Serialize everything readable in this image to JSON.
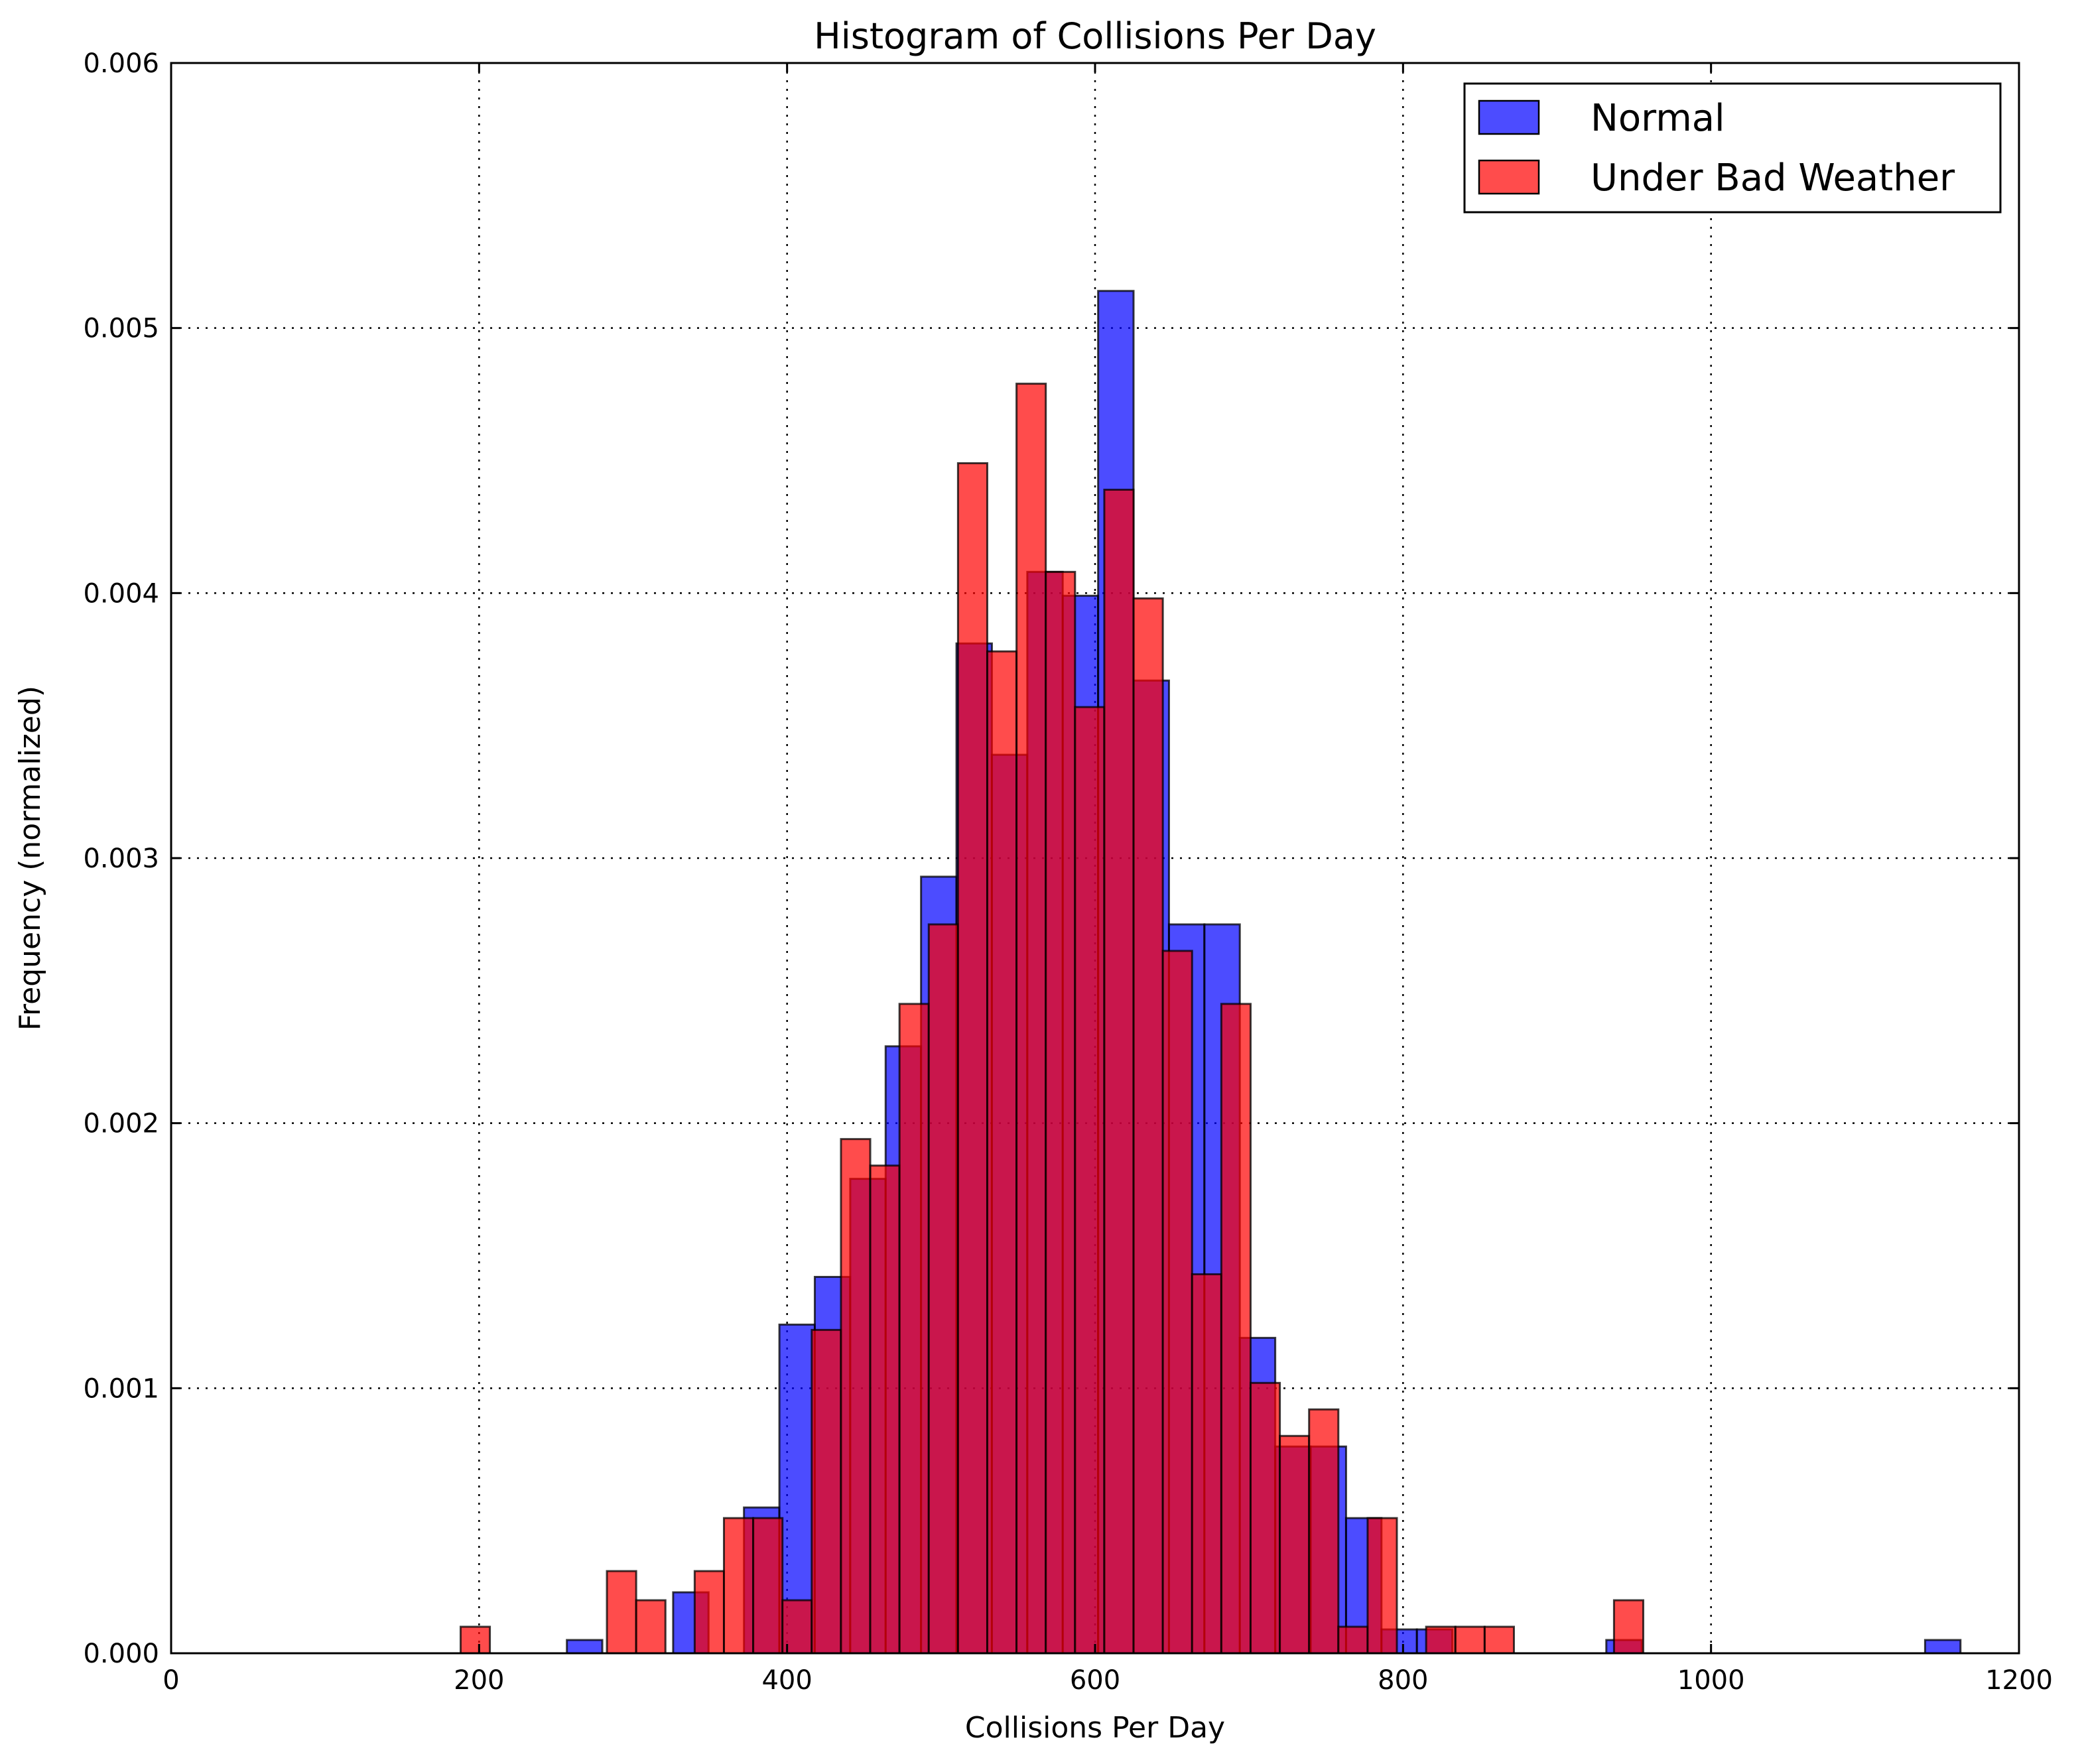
{
  "chart_data": {
    "type": "bar",
    "title": "Histogram of Collisions Per Day",
    "xlabel": "Collisions Per Day",
    "ylabel": "Frequency (normalized)",
    "xlim": [
      0,
      1200
    ],
    "ylim": [
      0,
      0.006
    ],
    "xticks": [
      "0",
      "200",
      "400",
      "600",
      "800",
      "1000",
      "1200"
    ],
    "yticks": [
      "0.000",
      "0.001",
      "0.002",
      "0.003",
      "0.004",
      "0.005",
      "0.006"
    ],
    "grid": true,
    "legend_position": "top-right",
    "series": [
      {
        "name": "Normal",
        "color": "#0000ff",
        "bins": [
          {
            "x0": 257,
            "x1": 280,
            "y": 5e-05
          },
          {
            "x0": 326,
            "x1": 349,
            "y": 0.00023
          },
          {
            "x0": 372,
            "x1": 395,
            "y": 0.00055
          },
          {
            "x0": 395,
            "x1": 418,
            "y": 0.00124
          },
          {
            "x0": 418,
            "x1": 441,
            "y": 0.00142
          },
          {
            "x0": 441,
            "x1": 464,
            "y": 0.00179
          },
          {
            "x0": 464,
            "x1": 487,
            "y": 0.00229
          },
          {
            "x0": 487,
            "x1": 510,
            "y": 0.00293
          },
          {
            "x0": 510,
            "x1": 533,
            "y": 0.00381
          },
          {
            "x0": 533,
            "x1": 556,
            "y": 0.00339
          },
          {
            "x0": 556,
            "x1": 579,
            "y": 0.00408
          },
          {
            "x0": 579,
            "x1": 602,
            "y": 0.00399
          },
          {
            "x0": 602,
            "x1": 625,
            "y": 0.00514
          },
          {
            "x0": 625,
            "x1": 648,
            "y": 0.00367
          },
          {
            "x0": 648,
            "x1": 671,
            "y": 0.00275
          },
          {
            "x0": 671,
            "x1": 694,
            "y": 0.00275
          },
          {
            "x0": 694,
            "x1": 717,
            "y": 0.00119
          },
          {
            "x0": 717,
            "x1": 740,
            "y": 0.00078
          },
          {
            "x0": 740,
            "x1": 763,
            "y": 0.00078
          },
          {
            "x0": 763,
            "x1": 786,
            "y": 0.00051
          },
          {
            "x0": 786,
            "x1": 809,
            "y": 9e-05
          },
          {
            "x0": 809,
            "x1": 832,
            "y": 9e-05
          },
          {
            "x0": 932,
            "x1": 955,
            "y": 5e-05
          },
          {
            "x0": 1139,
            "x1": 1162,
            "y": 5e-05
          }
        ]
      },
      {
        "name": "Under Bad Weather",
        "color": "#ff0000",
        "bins": [
          {
            "x0": 188,
            "x1": 207,
            "y": 0.0001
          },
          {
            "x0": 283,
            "x1": 302,
            "y": 0.00031
          },
          {
            "x0": 302,
            "x1": 321,
            "y": 0.0002
          },
          {
            "x0": 340,
            "x1": 359,
            "y": 0.00031
          },
          {
            "x0": 359,
            "x1": 378,
            "y": 0.00051
          },
          {
            "x0": 378,
            "x1": 397,
            "y": 0.00051
          },
          {
            "x0": 397,
            "x1": 416,
            "y": 0.0002
          },
          {
            "x0": 416,
            "x1": 435,
            "y": 0.00122
          },
          {
            "x0": 435,
            "x1": 454,
            "y": 0.00194
          },
          {
            "x0": 454,
            "x1": 473,
            "y": 0.00184
          },
          {
            "x0": 473,
            "x1": 492,
            "y": 0.00245
          },
          {
            "x0": 492,
            "x1": 511,
            "y": 0.00275
          },
          {
            "x0": 511,
            "x1": 530,
            "y": 0.00449
          },
          {
            "x0": 530,
            "x1": 549,
            "y": 0.00378
          },
          {
            "x0": 549,
            "x1": 568,
            "y": 0.00479
          },
          {
            "x0": 568,
            "x1": 587,
            "y": 0.00408
          },
          {
            "x0": 587,
            "x1": 606,
            "y": 0.00357
          },
          {
            "x0": 606,
            "x1": 625,
            "y": 0.00439
          },
          {
            "x0": 625,
            "x1": 644,
            "y": 0.00398
          },
          {
            "x0": 644,
            "x1": 663,
            "y": 0.00265
          },
          {
            "x0": 663,
            "x1": 682,
            "y": 0.00143
          },
          {
            "x0": 682,
            "x1": 701,
            "y": 0.00245
          },
          {
            "x0": 701,
            "x1": 720,
            "y": 0.00102
          },
          {
            "x0": 720,
            "x1": 739,
            "y": 0.00082
          },
          {
            "x0": 739,
            "x1": 758,
            "y": 0.00092
          },
          {
            "x0": 758,
            "x1": 777,
            "y": 0.0001
          },
          {
            "x0": 777,
            "x1": 796,
            "y": 0.00051
          },
          {
            "x0": 815,
            "x1": 834,
            "y": 0.0001
          },
          {
            "x0": 834,
            "x1": 853,
            "y": 0.0001
          },
          {
            "x0": 853,
            "x1": 872,
            "y": 0.0001
          },
          {
            "x0": 937,
            "x1": 956,
            "y": 0.0002
          }
        ]
      }
    ]
  }
}
